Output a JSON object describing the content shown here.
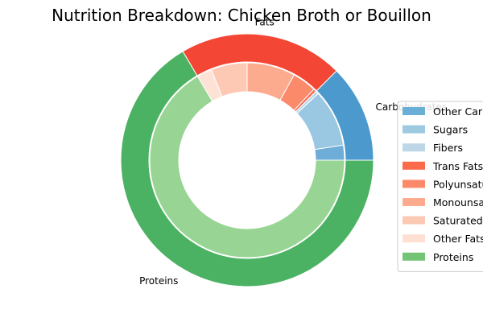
{
  "chart_data": {
    "type": "pie",
    "style": "nested-donut",
    "title": "Nutrition Breakdown:  Chicken Broth or Bouillon",
    "outer_ring": [
      {
        "name": "Carbohydrates",
        "value": 12.5,
        "color": "#4c99cd"
      },
      {
        "name": "Fats",
        "value": 21.0,
        "color": "#f44634"
      },
      {
        "name": "Proteins",
        "value": 66.5,
        "color": "#4cb263"
      }
    ],
    "inner_ring": [
      {
        "name": "Other Carbohydrates",
        "group": "Carbohydrates",
        "value": 2.5,
        "color": "#6fadd9"
      },
      {
        "name": "Sugars",
        "group": "Carbohydrates",
        "value": 9.5,
        "color": "#9ac7e2"
      },
      {
        "name": "Fibers",
        "group": "Carbohydrates",
        "value": 0.5,
        "color": "#b9d8ee"
      },
      {
        "name": "Trans Fats",
        "group": "Fats",
        "value": 0.5,
        "color": "#f96d51"
      },
      {
        "name": "Polyunsaturated Fats",
        "group": "Fats",
        "value": 4.0,
        "color": "#fb8a6a"
      },
      {
        "name": "Monounsaturated Fats",
        "group": "Fats",
        "value": 8.0,
        "color": "#fcab8f"
      },
      {
        "name": "Saturated Fats",
        "group": "Fats",
        "value": 6.0,
        "color": "#fdc9b4"
      },
      {
        "name": "Other Fats",
        "group": "Fats",
        "value": 2.5,
        "color": "#fde2d6"
      },
      {
        "name": "Proteins",
        "group": "Proteins",
        "value": 66.5,
        "color": "#98d594"
      }
    ],
    "legend": {
      "placement": "right",
      "entries": [
        {
          "label": "Other Carbohydrates",
          "color": "#6baed6"
        },
        {
          "label": "Sugars",
          "color": "#9ecae1"
        },
        {
          "label": "Fibers",
          "color": "#bdd7e7"
        },
        {
          "label": "Trans Fats",
          "color": "#fb6a4a"
        },
        {
          "label": "Polyunsaturated Fats",
          "color": "#fc8a6a"
        },
        {
          "label": "Monounsaturated Fats",
          "color": "#fcab8e"
        },
        {
          "label": "Saturated Fats",
          "color": "#fcc9b4"
        },
        {
          "label": "Other Fats",
          "color": "#fee0d2"
        },
        {
          "label": "Proteins",
          "color": "#74c476"
        }
      ]
    }
  }
}
